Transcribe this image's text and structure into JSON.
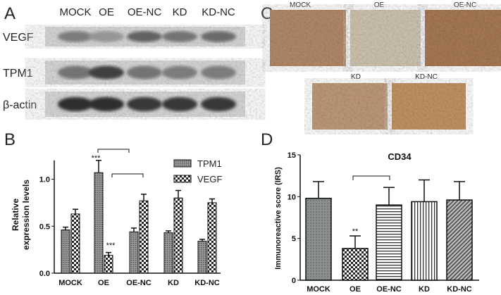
{
  "panels": {
    "a": "A",
    "b": "B",
    "c": "C",
    "d": "D"
  },
  "blot": {
    "lanes": [
      "MOCK",
      "OE",
      "OE-NC",
      "KD",
      "KD-NC"
    ],
    "rows": [
      "VEGF",
      "TPM1",
      "β-actin"
    ],
    "intensity": {
      "VEGF": [
        0.45,
        0.3,
        0.6,
        0.5,
        0.55
      ],
      "TPM1": [
        0.5,
        0.8,
        0.5,
        0.45,
        0.45
      ],
      "β-actin": [
        0.9,
        0.9,
        0.85,
        0.85,
        0.85
      ]
    }
  },
  "ihc": {
    "labels": [
      "MOCK",
      "OE",
      "OE-NC",
      "KD",
      "KD-NC"
    ],
    "colors": [
      "#b48a6a",
      "#cfc4b0",
      "#a87a55",
      "#bf9a78",
      "#c19465"
    ]
  },
  "chart_data": [
    {
      "type": "bar",
      "panel": "B",
      "categories": [
        "MOCK",
        "OE",
        "OE-NC",
        "KD",
        "KD-NC"
      ],
      "series": [
        {
          "name": "TPM1",
          "values": [
            0.46,
            1.07,
            0.44,
            0.43,
            0.34
          ],
          "errors": [
            0.03,
            0.13,
            0.04,
            0.02,
            0.02
          ]
        },
        {
          "name": "VEGF",
          "values": [
            0.63,
            0.19,
            0.77,
            0.8,
            0.75
          ],
          "errors": [
            0.05,
            0.03,
            0.07,
            0.08,
            0.04
          ]
        }
      ],
      "ylabel": "Relative expression levels",
      "xlabel": "",
      "ylim": [
        0,
        1.2
      ],
      "yticks": [
        "0.0",
        "0.5",
        "1.0"
      ],
      "annotations": [
        "***",
        "***"
      ],
      "legend": "top-right",
      "grid": false
    },
    {
      "type": "bar",
      "panel": "D",
      "title": "CD34",
      "categories": [
        "MOCK",
        "OE",
        "OE-NC",
        "KD",
        "KD-NC"
      ],
      "values": [
        9.8,
        3.8,
        9.0,
        9.4,
        9.6
      ],
      "errors": [
        2.0,
        1.5,
        2.1,
        2.6,
        2.2
      ],
      "ylabel": "Immunoreactive score (IRS)",
      "xlabel": "",
      "ylim": [
        0,
        15
      ],
      "yticks": [
        "0",
        "5",
        "10",
        "15"
      ],
      "annotations": [
        "**"
      ],
      "grid": false
    }
  ]
}
